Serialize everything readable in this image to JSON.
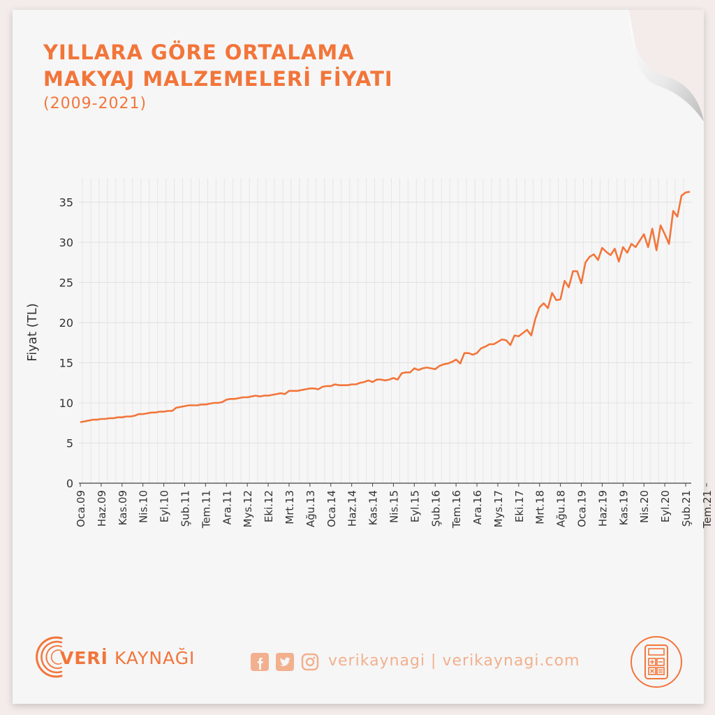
{
  "title_line1": "YILLARA GÖRE ORTALAMA",
  "title_line2": "MAKYAJ MALZEMELERİ FİYATI",
  "subtitle": "(2009-2021)",
  "brand": {
    "prefix": "VERİ",
    "suffix": "KAYNAĞI"
  },
  "handle": "verikaynagi | verikaynagi.com",
  "icons": [
    "facebook-icon",
    "twitter-icon",
    "instagram-icon",
    "calculator-icon",
    "veri-kaynagi-logo-icon"
  ],
  "colors": {
    "accent": "#f2753a",
    "line": "#f2753a",
    "grid": "#e0e0e0",
    "background": "#f6f6f6"
  },
  "chart_data": {
    "type": "line",
    "title": "YILLARA GÖRE ORTALAMA MAKYAJ MALZEMELERİ FİYATI",
    "subtitle": "(2009-2021)",
    "xlabel": "",
    "ylabel": "Fiyat (TL)",
    "ylim": [
      0,
      38
    ],
    "yticks": [
      0,
      5,
      10,
      15,
      20,
      25,
      30,
      35
    ],
    "grid": true,
    "x_start": "Oca.09",
    "x_end": "Ağu.21",
    "xtick_labels": [
      "Oca.09",
      "Haz.09",
      "Kas.09",
      "Nis.10",
      "Eyl.10",
      "Şub.11",
      "Tem.11",
      "Ara.11",
      "Mys.12",
      "Eki.12",
      "Mrt.13",
      "Ağu.13",
      "Oca.14",
      "Haz.14",
      "Kas.14",
      "Nis.15",
      "Eyl.15",
      "Şub.16",
      "Tem.16",
      "Ara.16",
      "Mys.17",
      "Eki.17",
      "Mrt.18",
      "Ağu.18",
      "Oca.19",
      "Haz.19",
      "Kas.19",
      "Nis.20",
      "Eyl.20",
      "Şub.21",
      "Tem.21"
    ],
    "series": [
      {
        "values": [
          7.6,
          7.7,
          7.8,
          7.9,
          7.9,
          8.0,
          8.0,
          8.1,
          8.1,
          8.2,
          8.2,
          8.3,
          8.3,
          8.4,
          8.6,
          8.6,
          8.7,
          8.8,
          8.8,
          8.9,
          8.9,
          9.0,
          9.0,
          9.4,
          9.5,
          9.6,
          9.7,
          9.7,
          9.7,
          9.8,
          9.8,
          9.9,
          10.0,
          10.0,
          10.1,
          10.4,
          10.5,
          10.5,
          10.6,
          10.7,
          10.7,
          10.8,
          10.9,
          10.8,
          10.9,
          10.9,
          11.0,
          11.1,
          11.2,
          11.1,
          11.5,
          11.5,
          11.5,
          11.6,
          11.7,
          11.8,
          11.8,
          11.7,
          12.0,
          12.1,
          12.1,
          12.3,
          12.2,
          12.2,
          12.2,
          12.3,
          12.3,
          12.5,
          12.6,
          12.8,
          12.6,
          12.9,
          12.9,
          12.8,
          12.9,
          13.1,
          12.9,
          13.7,
          13.8,
          13.8,
          14.3,
          14.1,
          14.3,
          14.4,
          14.3,
          14.2,
          14.6,
          14.8,
          14.9,
          15.1,
          15.4,
          14.9,
          16.2,
          16.2,
          16.0,
          16.2,
          16.8,
          17.0,
          17.3,
          17.3,
          17.6,
          17.9,
          17.8,
          17.2,
          18.4,
          18.3,
          18.7,
          19.1,
          18.4,
          20.5,
          21.9,
          22.4,
          21.8,
          23.7,
          22.8,
          22.9,
          25.2,
          24.4,
          26.4,
          26.4,
          24.9,
          27.5,
          28.2,
          28.5,
          27.8,
          29.3,
          28.8,
          28.4,
          29.2,
          27.6,
          29.4,
          28.7,
          29.8,
          29.4,
          30.2,
          31.0,
          29.4,
          31.7,
          29.0,
          32.1,
          31.0,
          29.8,
          33.9,
          33.2,
          35.8,
          36.2,
          36.3
        ]
      }
    ]
  }
}
